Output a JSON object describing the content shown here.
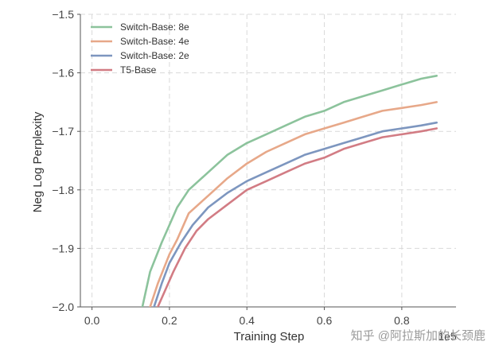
{
  "chart_data": {
    "type": "line",
    "xlabel": "Training Step",
    "ylabel": "Neg Log Perplexity",
    "x_scale_label": "1e5",
    "xlim": [
      -0.03,
      0.94
    ],
    "ylim": [
      -2.0,
      -1.5
    ],
    "x_ticks": [
      0.0,
      0.2,
      0.4,
      0.6,
      0.8
    ],
    "x_tick_labels": [
      "0.0",
      "0.2",
      "0.4",
      "0.6",
      "0.8"
    ],
    "y_ticks": [
      -2.0,
      -1.9,
      -1.8,
      -1.7,
      -1.6,
      -1.5
    ],
    "y_tick_labels": [
      "−2.0",
      "−1.9",
      "−1.8",
      "−1.7",
      "−1.6",
      "−1.5"
    ],
    "grid": true,
    "legend_position": "top-left",
    "series": [
      {
        "name": "Switch-Base: 8e",
        "color": "#8cc39c",
        "x": [
          0.13,
          0.15,
          0.18,
          0.2,
          0.22,
          0.25,
          0.3,
          0.35,
          0.4,
          0.45,
          0.5,
          0.55,
          0.6,
          0.65,
          0.7,
          0.75,
          0.8,
          0.85,
          0.89
        ],
        "y": [
          -2.0,
          -1.94,
          -1.89,
          -1.86,
          -1.83,
          -1.8,
          -1.77,
          -1.74,
          -1.72,
          -1.705,
          -1.69,
          -1.675,
          -1.665,
          -1.65,
          -1.64,
          -1.63,
          -1.62,
          -1.61,
          -1.605
        ]
      },
      {
        "name": "Switch-Base: 4e",
        "color": "#e7a889",
        "x": [
          0.15,
          0.17,
          0.2,
          0.22,
          0.25,
          0.3,
          0.35,
          0.4,
          0.45,
          0.5,
          0.55,
          0.6,
          0.65,
          0.7,
          0.75,
          0.8,
          0.85,
          0.89
        ],
        "y": [
          -2.0,
          -1.96,
          -1.91,
          -1.885,
          -1.84,
          -1.81,
          -1.78,
          -1.755,
          -1.735,
          -1.72,
          -1.705,
          -1.695,
          -1.685,
          -1.675,
          -1.665,
          -1.66,
          -1.655,
          -1.65
        ]
      },
      {
        "name": "Switch-Base: 2e",
        "color": "#7d96bf",
        "x": [
          0.16,
          0.18,
          0.2,
          0.23,
          0.26,
          0.3,
          0.35,
          0.4,
          0.45,
          0.5,
          0.55,
          0.6,
          0.65,
          0.7,
          0.75,
          0.8,
          0.85,
          0.89
        ],
        "y": [
          -2.0,
          -1.96,
          -1.925,
          -1.89,
          -1.86,
          -1.83,
          -1.805,
          -1.785,
          -1.77,
          -1.755,
          -1.74,
          -1.73,
          -1.72,
          -1.71,
          -1.7,
          -1.695,
          -1.69,
          -1.685
        ]
      },
      {
        "name": "T5-Base",
        "color": "#d27c84",
        "x": [
          0.17,
          0.19,
          0.21,
          0.24,
          0.27,
          0.3,
          0.35,
          0.4,
          0.45,
          0.5,
          0.55,
          0.6,
          0.65,
          0.7,
          0.75,
          0.8,
          0.85,
          0.89
        ],
        "y": [
          -2.0,
          -1.97,
          -1.94,
          -1.9,
          -1.87,
          -1.85,
          -1.825,
          -1.8,
          -1.785,
          -1.77,
          -1.755,
          -1.745,
          -1.73,
          -1.72,
          -1.71,
          -1.705,
          -1.7,
          -1.695
        ]
      }
    ]
  },
  "watermark": "知乎 @阿拉斯加的长颈鹿"
}
